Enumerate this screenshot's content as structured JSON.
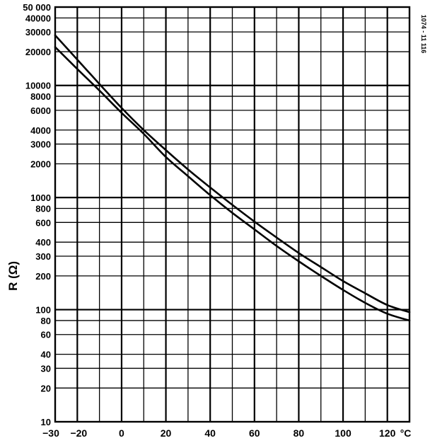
{
  "chart_data": {
    "type": "line",
    "title": "",
    "xlabel": "°C",
    "ylabel": "R (Ω)",
    "reference": "1074 - 11 116",
    "x_scale": "linear",
    "y_scale": "log",
    "xlim": [
      -30,
      130
    ],
    "ylim": [
      10,
      50000
    ],
    "x_ticks": [
      -30,
      -20,
      0,
      20,
      40,
      60,
      80,
      100,
      120
    ],
    "x_tick_labels": [
      "−30",
      "−20",
      "0",
      "20",
      "40",
      "60",
      "80",
      "100",
      "120"
    ],
    "x_grid": [
      -20,
      -10,
      0,
      10,
      20,
      30,
      40,
      50,
      60,
      70,
      80,
      90,
      100,
      110,
      120
    ],
    "y_ticks": [
      10,
      20,
      30,
      40,
      60,
      80,
      100,
      200,
      300,
      400,
      600,
      800,
      1000,
      2000,
      3000,
      4000,
      6000,
      8000,
      10000,
      20000,
      30000,
      40000,
      50000
    ],
    "y_tick_labels": [
      "10",
      "20",
      "30",
      "40",
      "60",
      "80",
      "100",
      "200",
      "300",
      "400",
      "600",
      "800",
      "1000",
      "2000",
      "3000",
      "4000",
      "6000",
      "8000",
      "10000",
      "20000",
      "30000",
      "40000",
      "50 000"
    ],
    "grid": true,
    "series": [
      {
        "x": [
          -30,
          -20,
          -10,
          0,
          10,
          20,
          30,
          40,
          50,
          60,
          70,
          80,
          90,
          100,
          110,
          120,
          130
        ],
        "y": [
          28000,
          17000,
          10300,
          6300,
          4000,
          2650,
          1780,
          1230,
          860,
          610,
          440,
          320,
          240,
          180,
          140,
          110,
          95
        ]
      },
      {
        "x": [
          -30,
          -20,
          -10,
          0,
          10,
          20,
          30,
          40,
          50,
          60,
          70,
          80,
          90,
          100,
          110,
          120,
          130
        ],
        "y": [
          22000,
          14000,
          9000,
          5700,
          3700,
          2300,
          1550,
          1050,
          730,
          520,
          370,
          270,
          200,
          150,
          115,
          92,
          80
        ]
      }
    ]
  }
}
